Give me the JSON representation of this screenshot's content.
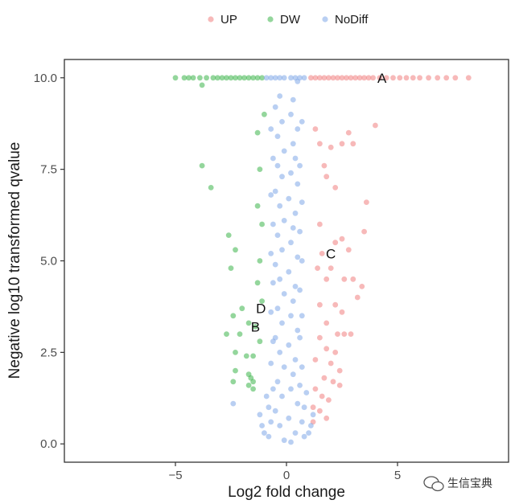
{
  "chart_data": {
    "type": "scatter",
    "title": "",
    "xlabel": "Log2 fold change",
    "ylabel": "Negative log10 transformed qvalue",
    "xlim": [
      -10,
      10
    ],
    "ylim": [
      -0.5,
      10.5
    ],
    "xticks": [
      -5,
      0,
      5
    ],
    "xtick_labels": [
      "−5",
      "0",
      "5"
    ],
    "yticks": [
      0,
      2.5,
      5,
      7.5,
      10
    ],
    "ytick_labels": [
      "0.0",
      "2.5",
      "5.0",
      "7.5",
      "10.0"
    ],
    "grid": false,
    "legend_position": "top",
    "series": [
      {
        "name": "UP",
        "color": "#f08080",
        "points": [
          [
            1.1,
            10
          ],
          [
            1.3,
            10
          ],
          [
            1.5,
            10
          ],
          [
            1.7,
            10
          ],
          [
            1.9,
            10
          ],
          [
            2.1,
            10
          ],
          [
            2.3,
            10
          ],
          [
            2.5,
            10
          ],
          [
            2.7,
            10
          ],
          [
            2.9,
            10
          ],
          [
            3.1,
            10
          ],
          [
            3.3,
            10
          ],
          [
            3.5,
            10
          ],
          [
            3.7,
            10
          ],
          [
            3.9,
            10
          ],
          [
            4.2,
            10
          ],
          [
            4.5,
            10
          ],
          [
            4.8,
            10
          ],
          [
            5.1,
            10
          ],
          [
            5.4,
            10
          ],
          [
            5.7,
            10
          ],
          [
            6.0,
            10
          ],
          [
            6.4,
            10
          ],
          [
            6.8,
            10
          ],
          [
            7.2,
            10
          ],
          [
            7.6,
            10
          ],
          [
            8.2,
            10
          ],
          [
            4.0,
            8.7
          ],
          [
            2.8,
            8.5
          ],
          [
            1.3,
            8.6
          ],
          [
            1.5,
            8.2
          ],
          [
            2.0,
            8.1
          ],
          [
            2.5,
            8.2
          ],
          [
            3.0,
            8.2
          ],
          [
            1.7,
            7.6
          ],
          [
            1.8,
            7.3
          ],
          [
            2.2,
            7.0
          ],
          [
            3.6,
            6.6
          ],
          [
            1.5,
            6.0
          ],
          [
            3.5,
            5.8
          ],
          [
            2.5,
            5.6
          ],
          [
            2.2,
            5.5
          ],
          [
            1.6,
            5.2
          ],
          [
            2.8,
            5.3
          ],
          [
            1.4,
            4.8
          ],
          [
            2.0,
            4.8
          ],
          [
            1.8,
            4.5
          ],
          [
            2.6,
            4.5
          ],
          [
            3.0,
            4.5
          ],
          [
            3.4,
            4.3
          ],
          [
            3.2,
            4.0
          ],
          [
            1.5,
            3.8
          ],
          [
            2.2,
            3.8
          ],
          [
            2.5,
            3.6
          ],
          [
            1.8,
            3.3
          ],
          [
            2.3,
            3.0
          ],
          [
            2.6,
            3.0
          ],
          [
            2.9,
            3.0
          ],
          [
            1.5,
            2.9
          ],
          [
            1.8,
            2.6
          ],
          [
            2.2,
            2.5
          ],
          [
            1.3,
            2.3
          ],
          [
            2.0,
            2.2
          ],
          [
            2.4,
            2.0
          ],
          [
            1.7,
            1.8
          ],
          [
            2.1,
            1.7
          ],
          [
            2.4,
            1.6
          ],
          [
            1.3,
            1.5
          ],
          [
            1.6,
            1.3
          ],
          [
            1.9,
            1.2
          ],
          [
            1.2,
            1.0
          ],
          [
            1.5,
            0.9
          ],
          [
            1.8,
            0.7
          ],
          [
            1.2,
            0.6
          ]
        ]
      },
      {
        "name": "DW",
        "color": "#3cb44b",
        "points": [
          [
            -5.0,
            10
          ],
          [
            -4.6,
            10
          ],
          [
            -4.4,
            10
          ],
          [
            -4.2,
            10
          ],
          [
            -3.9,
            10
          ],
          [
            -3.6,
            10
          ],
          [
            -3.3,
            10
          ],
          [
            -3.1,
            10
          ],
          [
            -2.9,
            10
          ],
          [
            -2.7,
            10
          ],
          [
            -2.5,
            10
          ],
          [
            -2.3,
            10
          ],
          [
            -2.1,
            10
          ],
          [
            -1.9,
            10
          ],
          [
            -1.7,
            10
          ],
          [
            -1.5,
            10
          ],
          [
            -1.3,
            10
          ],
          [
            -1.1,
            10
          ],
          [
            -3.8,
            9.8
          ],
          [
            -1.0,
            9.0
          ],
          [
            -1.3,
            8.5
          ],
          [
            -3.8,
            7.6
          ],
          [
            -1.2,
            7.5
          ],
          [
            -3.4,
            7.0
          ],
          [
            -1.3,
            6.5
          ],
          [
            -1.1,
            6.0
          ],
          [
            -2.6,
            5.7
          ],
          [
            -2.3,
            5.3
          ],
          [
            -1.2,
            5.0
          ],
          [
            -2.5,
            4.8
          ],
          [
            -1.3,
            4.4
          ],
          [
            -1.1,
            3.9
          ],
          [
            -2.0,
            3.7
          ],
          [
            -2.4,
            3.5
          ],
          [
            -1.7,
            3.3
          ],
          [
            -1.4,
            3.2
          ],
          [
            -2.7,
            3.0
          ],
          [
            -2.1,
            3.0
          ],
          [
            -1.2,
            2.8
          ],
          [
            -2.3,
            2.5
          ],
          [
            -1.8,
            2.4
          ],
          [
            -1.5,
            2.4
          ],
          [
            -2.3,
            2.0
          ],
          [
            -1.7,
            1.9
          ],
          [
            -1.6,
            1.8
          ],
          [
            -1.5,
            1.7
          ],
          [
            -2.4,
            1.7
          ],
          [
            -1.7,
            1.6
          ],
          [
            -1.5,
            1.5
          ]
        ]
      },
      {
        "name": "NoDiff",
        "color": "#7fa8e8",
        "points": [
          [
            -0.9,
            10
          ],
          [
            -0.7,
            10
          ],
          [
            -0.5,
            10
          ],
          [
            -0.3,
            10
          ],
          [
            -0.1,
            10
          ],
          [
            0.2,
            10
          ],
          [
            0.4,
            10
          ],
          [
            0.6,
            10
          ],
          [
            0.8,
            10
          ],
          [
            0.5,
            9.9
          ],
          [
            -0.3,
            9.5
          ],
          [
            0.3,
            9.4
          ],
          [
            -0.5,
            9.2
          ],
          [
            0.2,
            9.0
          ],
          [
            -0.2,
            8.8
          ],
          [
            0.5,
            8.6
          ],
          [
            -0.4,
            8.4
          ],
          [
            0.3,
            8.2
          ],
          [
            -0.1,
            8.0
          ],
          [
            0.4,
            7.8
          ],
          [
            -0.4,
            7.6
          ],
          [
            0.2,
            7.4
          ],
          [
            -0.2,
            7.3
          ],
          [
            0.5,
            7.1
          ],
          [
            -0.5,
            6.9
          ],
          [
            0.1,
            6.7
          ],
          [
            -0.3,
            6.5
          ],
          [
            0.4,
            6.3
          ],
          [
            -0.1,
            6.1
          ],
          [
            0.3,
            5.9
          ],
          [
            -0.4,
            5.7
          ],
          [
            0.2,
            5.5
          ],
          [
            -0.2,
            5.3
          ],
          [
            0.5,
            5.1
          ],
          [
            -0.5,
            4.9
          ],
          [
            0.1,
            4.7
          ],
          [
            -0.3,
            4.5
          ],
          [
            0.4,
            4.3
          ],
          [
            -0.1,
            4.1
          ],
          [
            0.3,
            3.9
          ],
          [
            -0.4,
            3.7
          ],
          [
            0.2,
            3.5
          ],
          [
            -0.2,
            3.3
          ],
          [
            0.5,
            3.1
          ],
          [
            -0.5,
            2.9
          ],
          [
            0.1,
            2.7
          ],
          [
            -0.3,
            2.5
          ],
          [
            0.4,
            2.3
          ],
          [
            -0.1,
            2.1
          ],
          [
            0.3,
            1.9
          ],
          [
            -0.4,
            1.7
          ],
          [
            0.2,
            1.5
          ],
          [
            -0.2,
            1.3
          ],
          [
            0.5,
            1.1
          ],
          [
            -0.5,
            0.9
          ],
          [
            0.1,
            0.7
          ],
          [
            -0.3,
            0.5
          ],
          [
            0.4,
            0.3
          ],
          [
            -0.1,
            0.1
          ],
          [
            0.2,
            0.05
          ],
          [
            -0.7,
            0.6
          ],
          [
            0.7,
            0.6
          ],
          [
            -0.8,
            1.0
          ],
          [
            0.8,
            1.0
          ],
          [
            -0.6,
            1.5
          ],
          [
            0.6,
            1.6
          ],
          [
            -0.7,
            2.2
          ],
          [
            0.7,
            2.1
          ],
          [
            -0.6,
            2.8
          ],
          [
            0.6,
            2.9
          ],
          [
            -0.7,
            3.6
          ],
          [
            0.7,
            3.5
          ],
          [
            -0.6,
            4.4
          ],
          [
            0.6,
            4.2
          ],
          [
            -0.7,
            5.2
          ],
          [
            0.7,
            5.0
          ],
          [
            -0.6,
            6.0
          ],
          [
            0.6,
            5.8
          ],
          [
            -0.7,
            6.8
          ],
          [
            0.7,
            6.6
          ],
          [
            -0.6,
            7.8
          ],
          [
            0.6,
            7.6
          ],
          [
            -0.7,
            8.6
          ],
          [
            0.7,
            8.8
          ],
          [
            -1.0,
            0.3
          ],
          [
            1.0,
            0.3
          ],
          [
            -1.2,
            0.8
          ],
          [
            1.2,
            0.8
          ],
          [
            -0.9,
            1.3
          ],
          [
            0.9,
            1.4
          ],
          [
            -2.4,
            1.1
          ],
          [
            -1.1,
            0.5
          ],
          [
            1.1,
            0.5
          ],
          [
            -0.8,
            0.2
          ],
          [
            0.8,
            0.2
          ]
        ]
      }
    ],
    "annotations": [
      {
        "text": "A",
        "x": 4.3,
        "y": 10.0
      },
      {
        "text": "C",
        "x": 2.0,
        "y": 5.2
      },
      {
        "text": "D",
        "x": -1.15,
        "y": 3.7
      },
      {
        "text": "B",
        "x": -1.4,
        "y": 3.2
      }
    ]
  },
  "watermark": {
    "text": "生信宝典",
    "icon": "wechat-icon"
  }
}
